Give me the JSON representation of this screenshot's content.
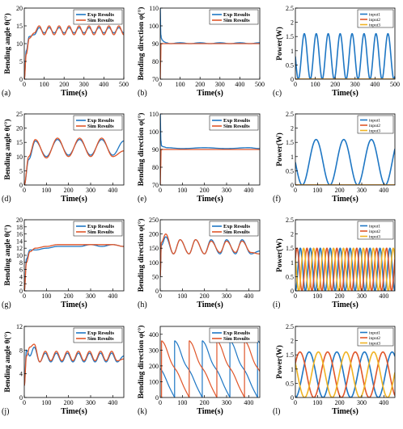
{
  "colors": {
    "exp": "#1f77c4",
    "sim": "#e0562a",
    "input1": "#1f77c4",
    "input2": "#e0562a",
    "input3": "#f0b323"
  },
  "charts": [
    {
      "panel": "(a)",
      "type": "line",
      "xlabel": "Time(s)",
      "ylabel": "Bending angle θ(°)",
      "xticks": [
        "0",
        "100",
        "200",
        "300",
        "400",
        "500"
      ],
      "yticks": [
        "0",
        "5",
        "10",
        "15",
        "20"
      ],
      "xlim": [
        0,
        500
      ],
      "ylim": [
        0,
        20
      ],
      "legend": [
        "Exp Results",
        "Sim Results"
      ]
    },
    {
      "panel": "(b)",
      "type": "line",
      "xlabel": "Time(s)",
      "ylabel": "Bending direction φ(°)",
      "xticks": [
        "0",
        "100",
        "200",
        "300",
        "400",
        "500"
      ],
      "yticks": [
        "70",
        "80",
        "90",
        "100",
        "110"
      ],
      "xlim": [
        0,
        500
      ],
      "ylim": [
        70,
        110
      ],
      "legend": [
        "Exp Results",
        "Sim Results"
      ]
    },
    {
      "panel": "(c)",
      "type": "line",
      "xlabel": "Time(s)",
      "ylabel": "Power(W)",
      "xticks": [
        "0",
        "100",
        "200",
        "300",
        "400",
        "500"
      ],
      "yticks": [
        "0",
        "0.5",
        "1",
        "1.5",
        "2",
        "2.5"
      ],
      "xlim": [
        0,
        500
      ],
      "ylim": [
        0,
        2.5
      ],
      "legend": [
        "input1",
        "input2",
        "input3"
      ]
    },
    {
      "panel": "(d)",
      "type": "line",
      "xlabel": "Time(s)",
      "ylabel": "Bending angle θ(°)",
      "xticks": [
        "0",
        "100",
        "200",
        "300",
        "400"
      ],
      "yticks": [
        "0",
        "5",
        "10",
        "15",
        "20",
        "25"
      ],
      "xlim": [
        0,
        450
      ],
      "ylim": [
        0,
        25
      ],
      "legend": [
        "Exp Results",
        "Sim Results"
      ]
    },
    {
      "panel": "(e)",
      "type": "line",
      "xlabel": "Time(s)",
      "ylabel": "Bending direction φ(°)",
      "xticks": [
        "0",
        "100",
        "200",
        "300",
        "400"
      ],
      "yticks": [
        "70",
        "80",
        "90",
        "100",
        "110"
      ],
      "xlim": [
        0,
        450
      ],
      "ylim": [
        70,
        110
      ],
      "legend": [
        "Exp Results",
        "Sim Results"
      ]
    },
    {
      "panel": "(f)",
      "type": "line",
      "xlabel": "Time(s)",
      "ylabel": "Power(W)",
      "xticks": [
        "0",
        "100",
        "200",
        "300",
        "400"
      ],
      "yticks": [
        "0",
        "0.5",
        "1",
        "1.5",
        "2",
        "2.5"
      ],
      "xlim": [
        0,
        450
      ],
      "ylim": [
        0,
        2.5
      ],
      "legend": [
        "input1",
        "input2",
        "input3"
      ]
    },
    {
      "panel": "(g)",
      "type": "line",
      "xlabel": "Time(s)",
      "ylabel": "Bending angle θ(°)",
      "xticks": [
        "0",
        "100",
        "200",
        "300",
        "400"
      ],
      "yticks": [
        "0",
        "2",
        "4",
        "6",
        "8",
        "10",
        "12",
        "14",
        "16",
        "18",
        "20"
      ],
      "xlim": [
        0,
        450
      ],
      "ylim": [
        0,
        20
      ],
      "legend": [
        "Exp Results",
        "Sim Results"
      ]
    },
    {
      "panel": "(h)",
      "type": "line",
      "xlabel": "Time(s)",
      "ylabel": "Bending direction φ(°)",
      "xticks": [
        "0",
        "100",
        "200",
        "300",
        "400"
      ],
      "yticks": [
        "0",
        "50",
        "100",
        "150",
        "200",
        "250"
      ],
      "xlim": [
        0,
        450
      ],
      "ylim": [
        0,
        250
      ],
      "legend": [
        "Exp Results",
        "Sim Results"
      ]
    },
    {
      "panel": "(i)",
      "type": "line",
      "xlabel": "Time(s)",
      "ylabel": "Power(W)",
      "xticks": [
        "0",
        "100",
        "200",
        "300",
        "400"
      ],
      "yticks": [
        "0",
        "0.5",
        "1",
        "1.5",
        "2",
        "2.5"
      ],
      "xlim": [
        0,
        450
      ],
      "ylim": [
        0,
        2.5
      ],
      "legend": [
        "input1",
        "input2",
        "input3"
      ]
    },
    {
      "panel": "(j)",
      "type": "line",
      "xlabel": "Time(s)",
      "ylabel": "Bending angle θ(°)",
      "xticks": [
        "0",
        "100",
        "200",
        "300",
        "400"
      ],
      "yticks": [
        "0",
        "4",
        "8",
        "12"
      ],
      "xlim": [
        0,
        450
      ],
      "ylim": [
        0,
        12
      ],
      "legend": [
        "Exp Results",
        "Sim Results"
      ]
    },
    {
      "panel": "(k)",
      "type": "line",
      "xlabel": "Time(s)",
      "ylabel": "Bending direction φ(°)",
      "xticks": [
        "0",
        "100",
        "200",
        "300",
        "400"
      ],
      "yticks": [
        "0",
        "100",
        "200",
        "300",
        "400"
      ],
      "xlim": [
        0,
        450
      ],
      "ylim": [
        0,
        450
      ],
      "legend": [
        "Exp Results",
        "Sim Results"
      ]
    },
    {
      "panel": "(l)",
      "type": "line",
      "xlabel": "Time(s)",
      "ylabel": "Power(W)",
      "xticks": [
        "0",
        "100",
        "200",
        "300",
        "400"
      ],
      "yticks": [
        "0",
        "0.5",
        "1",
        "1.5",
        "2",
        "2.5"
      ],
      "xlim": [
        0,
        450
      ],
      "ylim": [
        0,
        2.5
      ],
      "legend": [
        "input1",
        "input2",
        "input3"
      ]
    }
  ],
  "chart_data": [
    {
      "panel": "(a)",
      "type": "line",
      "xlabel": "Time(s)",
      "ylabel": "Bending angle θ(°)",
      "xlim": [
        0,
        500
      ],
      "ylim": [
        0,
        20
      ],
      "series": [
        {
          "name": "Exp Results",
          "x": [
            0,
            10,
            25,
            50,
            75,
            100,
            125,
            150,
            175,
            200,
            225,
            250,
            275,
            300,
            325,
            350,
            375,
            400,
            425,
            450,
            475,
            500
          ],
          "y": [
            0,
            8,
            12,
            12.5,
            14.5,
            13,
            14.5,
            13,
            14.5,
            13,
            14.5,
            13,
            14.5,
            13,
            14.5,
            13,
            14.5,
            13,
            14.5,
            13,
            14.5,
            13
          ]
        },
        {
          "name": "Sim Results",
          "x": [
            0,
            10,
            25,
            50,
            75,
            100,
            125,
            150,
            175,
            200,
            225,
            250,
            275,
            300,
            325,
            350,
            375,
            400,
            425,
            450,
            475,
            500
          ],
          "y": [
            0,
            7,
            11.5,
            13,
            15,
            12.5,
            15,
            12.5,
            15,
            12.5,
            15,
            12.5,
            15,
            12.5,
            15,
            12.5,
            15,
            12.5,
            15,
            12.5,
            15,
            12.5
          ]
        }
      ]
    },
    {
      "panel": "(b)",
      "type": "line",
      "xlabel": "Time(s)",
      "ylabel": "Bending direction φ(°)",
      "xlim": [
        0,
        500
      ],
      "ylim": [
        70,
        110
      ],
      "series": [
        {
          "name": "Exp Results",
          "x": [
            0,
            3,
            6,
            10,
            20,
            30,
            50,
            100,
            150,
            200,
            250,
            300,
            350,
            400,
            450,
            500
          ],
          "y": [
            110,
            95,
            93,
            92,
            91,
            90.5,
            90,
            90.5,
            90,
            90.5,
            90,
            90.5,
            90,
            90.5,
            90,
            90.5
          ]
        },
        {
          "name": "Sim Results",
          "x": [
            0,
            2,
            4,
            10,
            100,
            200,
            300,
            400,
            500
          ],
          "y": [
            70,
            80,
            90,
            90,
            90,
            90,
            90,
            90,
            90
          ]
        }
      ]
    },
    {
      "panel": "(c)",
      "type": "line",
      "xlabel": "Time(s)",
      "ylabel": "Power(W)",
      "xlim": [
        0,
        500
      ],
      "ylim": [
        0,
        2.5
      ],
      "series": [
        {
          "name": "input1",
          "period_s": 60,
          "min": 0,
          "max": 1.6
        },
        {
          "name": "input2",
          "constant": 0
        },
        {
          "name": "input3",
          "constant": 0
        }
      ]
    },
    {
      "panel": "(d)",
      "type": "line",
      "xlabel": "Time(s)",
      "ylabel": "Bending angle θ(°)",
      "xlim": [
        0,
        450
      ],
      "ylim": [
        0,
        25
      ],
      "series": [
        {
          "name": "Exp Results",
          "x": [
            0,
            20,
            50,
            100,
            150,
            200,
            250,
            300,
            350,
            400,
            450
          ],
          "y": [
            0,
            9,
            15.5,
            10,
            16,
            10.5,
            16,
            10.5,
            16,
            10.5,
            15.5
          ]
        },
        {
          "name": "Sim Results",
          "x": [
            0,
            20,
            50,
            100,
            150,
            200,
            250,
            300,
            350,
            400,
            450
          ],
          "y": [
            0,
            10,
            16,
            9.5,
            16.5,
            10,
            16.5,
            10,
            16.5,
            10,
            12
          ]
        }
      ]
    },
    {
      "panel": "(e)",
      "type": "line",
      "xlabel": "Time(s)",
      "ylabel": "Bending direction φ(°)",
      "xlim": [
        0,
        450
      ],
      "ylim": [
        70,
        110
      ],
      "series": [
        {
          "name": "Exp Results",
          "x": [
            0,
            3,
            6,
            15,
            30,
            100,
            200,
            300,
            400,
            450
          ],
          "y": [
            110,
            95,
            92,
            91.5,
            91,
            90.5,
            91,
            90.5,
            91,
            90.5
          ]
        },
        {
          "name": "Sim Results",
          "x": [
            0,
            2,
            4,
            10,
            100,
            200,
            300,
            400,
            450
          ],
          "y": [
            70,
            80,
            90,
            90,
            90,
            90,
            90,
            90,
            90
          ]
        }
      ]
    },
    {
      "panel": "(f)",
      "type": "line",
      "xlabel": "Time(s)",
      "ylabel": "Power(W)",
      "xlim": [
        0,
        450
      ],
      "ylim": [
        0,
        2.5
      ],
      "series": [
        {
          "name": "input1",
          "period_s": 125,
          "min": 0,
          "max": 1.6
        },
        {
          "name": "input2",
          "constant": 0
        },
        {
          "name": "input3",
          "constant": 0
        }
      ]
    },
    {
      "panel": "(g)",
      "type": "line",
      "xlabel": "Time(s)",
      "ylabel": "Bending angle θ(°)",
      "xlim": [
        0,
        450
      ],
      "ylim": [
        0,
        20
      ],
      "series": [
        {
          "name": "Exp Results",
          "x": [
            0,
            10,
            25,
            50,
            100,
            150,
            200,
            250,
            300,
            350,
            400,
            450
          ],
          "y": [
            0,
            9,
            11.5,
            11.5,
            12,
            12.5,
            12.5,
            12.5,
            13,
            12.5,
            13,
            12.5
          ]
        },
        {
          "name": "Sim Results",
          "x": [
            0,
            10,
            25,
            50,
            100,
            150,
            200,
            250,
            300,
            350,
            400,
            450
          ],
          "y": [
            0,
            8,
            11,
            12,
            12.5,
            13,
            13,
            13,
            13,
            13,
            13,
            12.5
          ]
        }
      ]
    },
    {
      "panel": "(h)",
      "type": "line",
      "xlabel": "Time(s)",
      "ylabel": "Bending direction φ(°)",
      "xlim": [
        0,
        450
      ],
      "ylim": [
        0,
        250
      ],
      "series": [
        {
          "name": "Exp Results",
          "x": [
            0,
            5,
            25,
            60,
            90,
            130,
            160,
            200,
            230,
            270,
            300,
            340,
            370,
            410,
            450
          ],
          "y": [
            50,
            160,
            190,
            130,
            180,
            130,
            180,
            130,
            180,
            130,
            180,
            130,
            180,
            130,
            140
          ]
        },
        {
          "name": "Sim Results",
          "x": [
            0,
            5,
            25,
            60,
            90,
            130,
            160,
            200,
            230,
            270,
            300,
            340,
            370,
            410,
            450
          ],
          "y": [
            50,
            170,
            200,
            130,
            180,
            130,
            180,
            130,
            175,
            135,
            175,
            135,
            175,
            135,
            130
          ]
        }
      ]
    },
    {
      "panel": "(i)",
      "type": "line",
      "xlabel": "Time(s)",
      "ylabel": "Power(W)",
      "xlim": [
        0,
        450
      ],
      "ylim": [
        0,
        2.5
      ],
      "series": [
        {
          "name": "input1",
          "period_s": 45,
          "min": 0,
          "max": 1.5
        },
        {
          "name": "input2",
          "period_s": 45,
          "min": 0,
          "max": 1.5
        },
        {
          "name": "input3",
          "period_s": 45,
          "min": 0,
          "max": 1.5
        }
      ]
    },
    {
      "panel": "(j)",
      "type": "line",
      "xlabel": "Time(s)",
      "ylabel": "Bending angle θ(°)",
      "xlim": [
        0,
        450
      ],
      "ylim": [
        0,
        12
      ],
      "series": [
        {
          "name": "Exp Results",
          "x": [
            0,
            10,
            25,
            45,
            70,
            95,
            120,
            145,
            170,
            195,
            220,
            245,
            270,
            295,
            320,
            345,
            370,
            395,
            420,
            450
          ],
          "y": [
            2,
            8,
            7,
            8.5,
            6,
            7.5,
            6,
            7.5,
            6,
            7.5,
            6,
            7.5,
            6,
            7.5,
            6,
            7.5,
            6,
            7.5,
            6,
            7
          ]
        },
        {
          "name": "Sim Results",
          "x": [
            0,
            10,
            25,
            45,
            70,
            95,
            120,
            145,
            170,
            195,
            220,
            245,
            270,
            295,
            320,
            345,
            370,
            395,
            420,
            450
          ],
          "y": [
            2,
            7,
            8.5,
            9,
            6,
            7.8,
            6.2,
            7.8,
            6.2,
            7.8,
            6.2,
            7.8,
            6.2,
            7.8,
            6.2,
            7.8,
            6.2,
            7.8,
            6.2,
            6.5
          ]
        }
      ]
    },
    {
      "panel": "(k)",
      "type": "line",
      "xlabel": "Time(s)",
      "ylabel": "Bending direction φ(°)",
      "xlim": [
        0,
        450
      ],
      "ylim": [
        0,
        450
      ],
      "series": [
        {
          "name": "Exp Results",
          "sawtooth_period_s": 125,
          "range": [
            0,
            360
          ]
        },
        {
          "name": "Sim Results",
          "sawtooth_period_s": 125,
          "range": [
            0,
            360
          ]
        }
      ]
    },
    {
      "panel": "(l)",
      "type": "line",
      "xlabel": "Time(s)",
      "ylabel": "Power(W)",
      "xlim": [
        0,
        450
      ],
      "ylim": [
        0,
        2.5
      ],
      "series": [
        {
          "name": "input1",
          "period_s": 125,
          "min": 0,
          "max": 1.6
        },
        {
          "name": "input2",
          "period_s": 125,
          "min": 0,
          "max": 1.6
        },
        {
          "name": "input3",
          "period_s": 125,
          "min": 0,
          "max": 1.6
        }
      ]
    }
  ]
}
